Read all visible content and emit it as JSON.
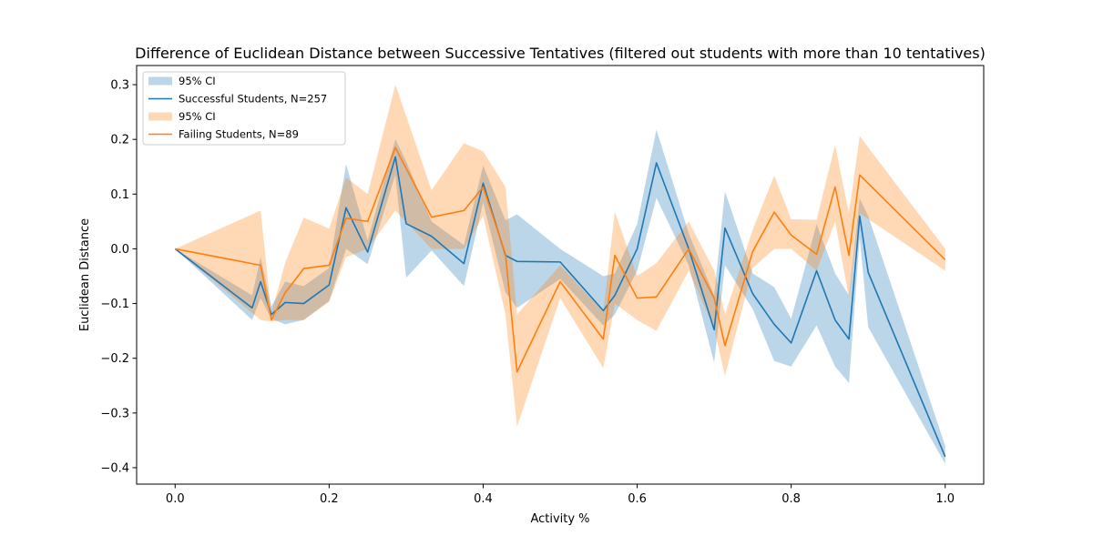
{
  "chart_data": {
    "type": "line",
    "title": "Difference of Euclidean Distance between Successive Tentatives (filtered out students with more than 10 tentatives)",
    "xlabel": "Activity %",
    "ylabel": "Euclidean Distance",
    "xlim": [
      -0.05,
      1.05
    ],
    "ylim": [
      -0.43,
      0.335
    ],
    "xticks": [
      0.0,
      0.2,
      0.4,
      0.6,
      0.8,
      1.0
    ],
    "xtick_labels": [
      "0.0",
      "0.2",
      "0.4",
      "0.6",
      "0.8",
      "1.0"
    ],
    "yticks": [
      -0.4,
      -0.3,
      -0.2,
      -0.1,
      0.0,
      0.1,
      0.2,
      0.3
    ],
    "ytick_labels": [
      "−0.4",
      "−0.3",
      "−0.2",
      "−0.1",
      "0.0",
      "0.1",
      "0.2",
      "0.3"
    ],
    "grid": false,
    "legend_position": "upper-left",
    "legend": [
      {
        "label": "95% CI",
        "kind": "band",
        "color": "#1f77b4"
      },
      {
        "label": "Successful Students, N=257",
        "kind": "line",
        "color": "#1f77b4"
      },
      {
        "label": "95% CI",
        "kind": "band",
        "color": "#ff7f0e"
      },
      {
        "label": "Failing Students, N=89",
        "kind": "line",
        "color": "#ff7f0e"
      }
    ],
    "series": [
      {
        "name": "Successful Students, N=257",
        "color": "#1f77b4",
        "x": [
          0.0,
          0.1,
          0.111,
          0.125,
          0.143,
          0.167,
          0.2,
          0.222,
          0.25,
          0.286,
          0.3,
          0.333,
          0.375,
          0.4,
          0.429,
          0.444,
          0.5,
          0.556,
          0.571,
          0.6,
          0.625,
          0.667,
          0.7,
          0.714,
          0.75,
          0.778,
          0.8,
          0.833,
          0.857,
          0.875,
          0.889,
          0.9,
          1.0
        ],
        "y": [
          0.0,
          -0.108,
          -0.06,
          -0.12,
          -0.098,
          -0.1,
          -0.066,
          0.075,
          -0.006,
          0.168,
          0.046,
          0.023,
          -0.027,
          0.12,
          -0.012,
          -0.023,
          -0.024,
          -0.113,
          -0.085,
          0.0,
          0.157,
          0.0,
          -0.148,
          0.038,
          -0.082,
          -0.138,
          -0.172,
          -0.04,
          -0.13,
          -0.165,
          0.06,
          -0.043,
          -0.38
        ],
        "lower": [
          0.0,
          -0.13,
          -0.09,
          -0.128,
          -0.138,
          -0.13,
          -0.095,
          0.0,
          -0.028,
          0.135,
          -0.053,
          -0.003,
          -0.068,
          0.085,
          -0.08,
          -0.108,
          -0.055,
          -0.14,
          -0.12,
          -0.04,
          0.093,
          -0.03,
          -0.208,
          -0.03,
          -0.11,
          -0.205,
          -0.215,
          -0.14,
          -0.215,
          -0.245,
          0.02,
          -0.143,
          -0.393
        ],
        "upper": [
          0.0,
          -0.085,
          -0.015,
          -0.105,
          -0.06,
          -0.068,
          -0.035,
          0.155,
          0.015,
          0.2,
          0.16,
          0.05,
          0.007,
          0.152,
          0.052,
          0.063,
          0.0,
          -0.05,
          -0.045,
          0.045,
          0.218,
          0.028,
          -0.085,
          0.105,
          -0.045,
          -0.07,
          -0.128,
          0.045,
          -0.045,
          -0.085,
          0.092,
          0.06,
          -0.36
        ]
      },
      {
        "name": "Failing Students, N=89",
        "color": "#ff7f0e",
        "x": [
          0.0,
          0.111,
          0.125,
          0.143,
          0.167,
          0.2,
          0.222,
          0.25,
          0.286,
          0.333,
          0.375,
          0.4,
          0.429,
          0.444,
          0.5,
          0.556,
          0.571,
          0.6,
          0.625,
          0.667,
          0.7,
          0.714,
          0.75,
          0.778,
          0.8,
          0.833,
          0.857,
          0.875,
          0.889,
          1.0
        ],
        "y": [
          0.0,
          -0.03,
          -0.13,
          -0.08,
          -0.036,
          -0.03,
          0.056,
          0.05,
          0.185,
          0.058,
          0.07,
          0.113,
          -0.01,
          -0.225,
          -0.06,
          -0.165,
          -0.012,
          -0.09,
          -0.088,
          0.0,
          -0.09,
          -0.177,
          -0.005,
          0.067,
          0.025,
          -0.01,
          0.113,
          -0.012,
          0.135,
          -0.02
        ],
        "lower": [
          0.0,
          -0.13,
          -0.133,
          -0.13,
          -0.13,
          -0.097,
          -0.015,
          0.0,
          0.07,
          0.0,
          0.0,
          0.06,
          -0.12,
          -0.325,
          -0.09,
          -0.218,
          -0.1,
          -0.13,
          -0.15,
          -0.04,
          -0.145,
          -0.232,
          -0.035,
          0.0,
          0.0,
          -0.04,
          0.05,
          -0.09,
          0.065,
          -0.04
        ],
        "upper": [
          0.0,
          0.07,
          -0.118,
          -0.025,
          0.057,
          0.037,
          0.13,
          0.1,
          0.3,
          0.107,
          0.193,
          0.178,
          0.113,
          -0.12,
          -0.03,
          -0.115,
          0.068,
          -0.05,
          -0.026,
          0.05,
          -0.04,
          -0.12,
          0.035,
          0.134,
          0.054,
          0.053,
          0.19,
          0.065,
          0.206,
          0.0
        ]
      }
    ]
  }
}
